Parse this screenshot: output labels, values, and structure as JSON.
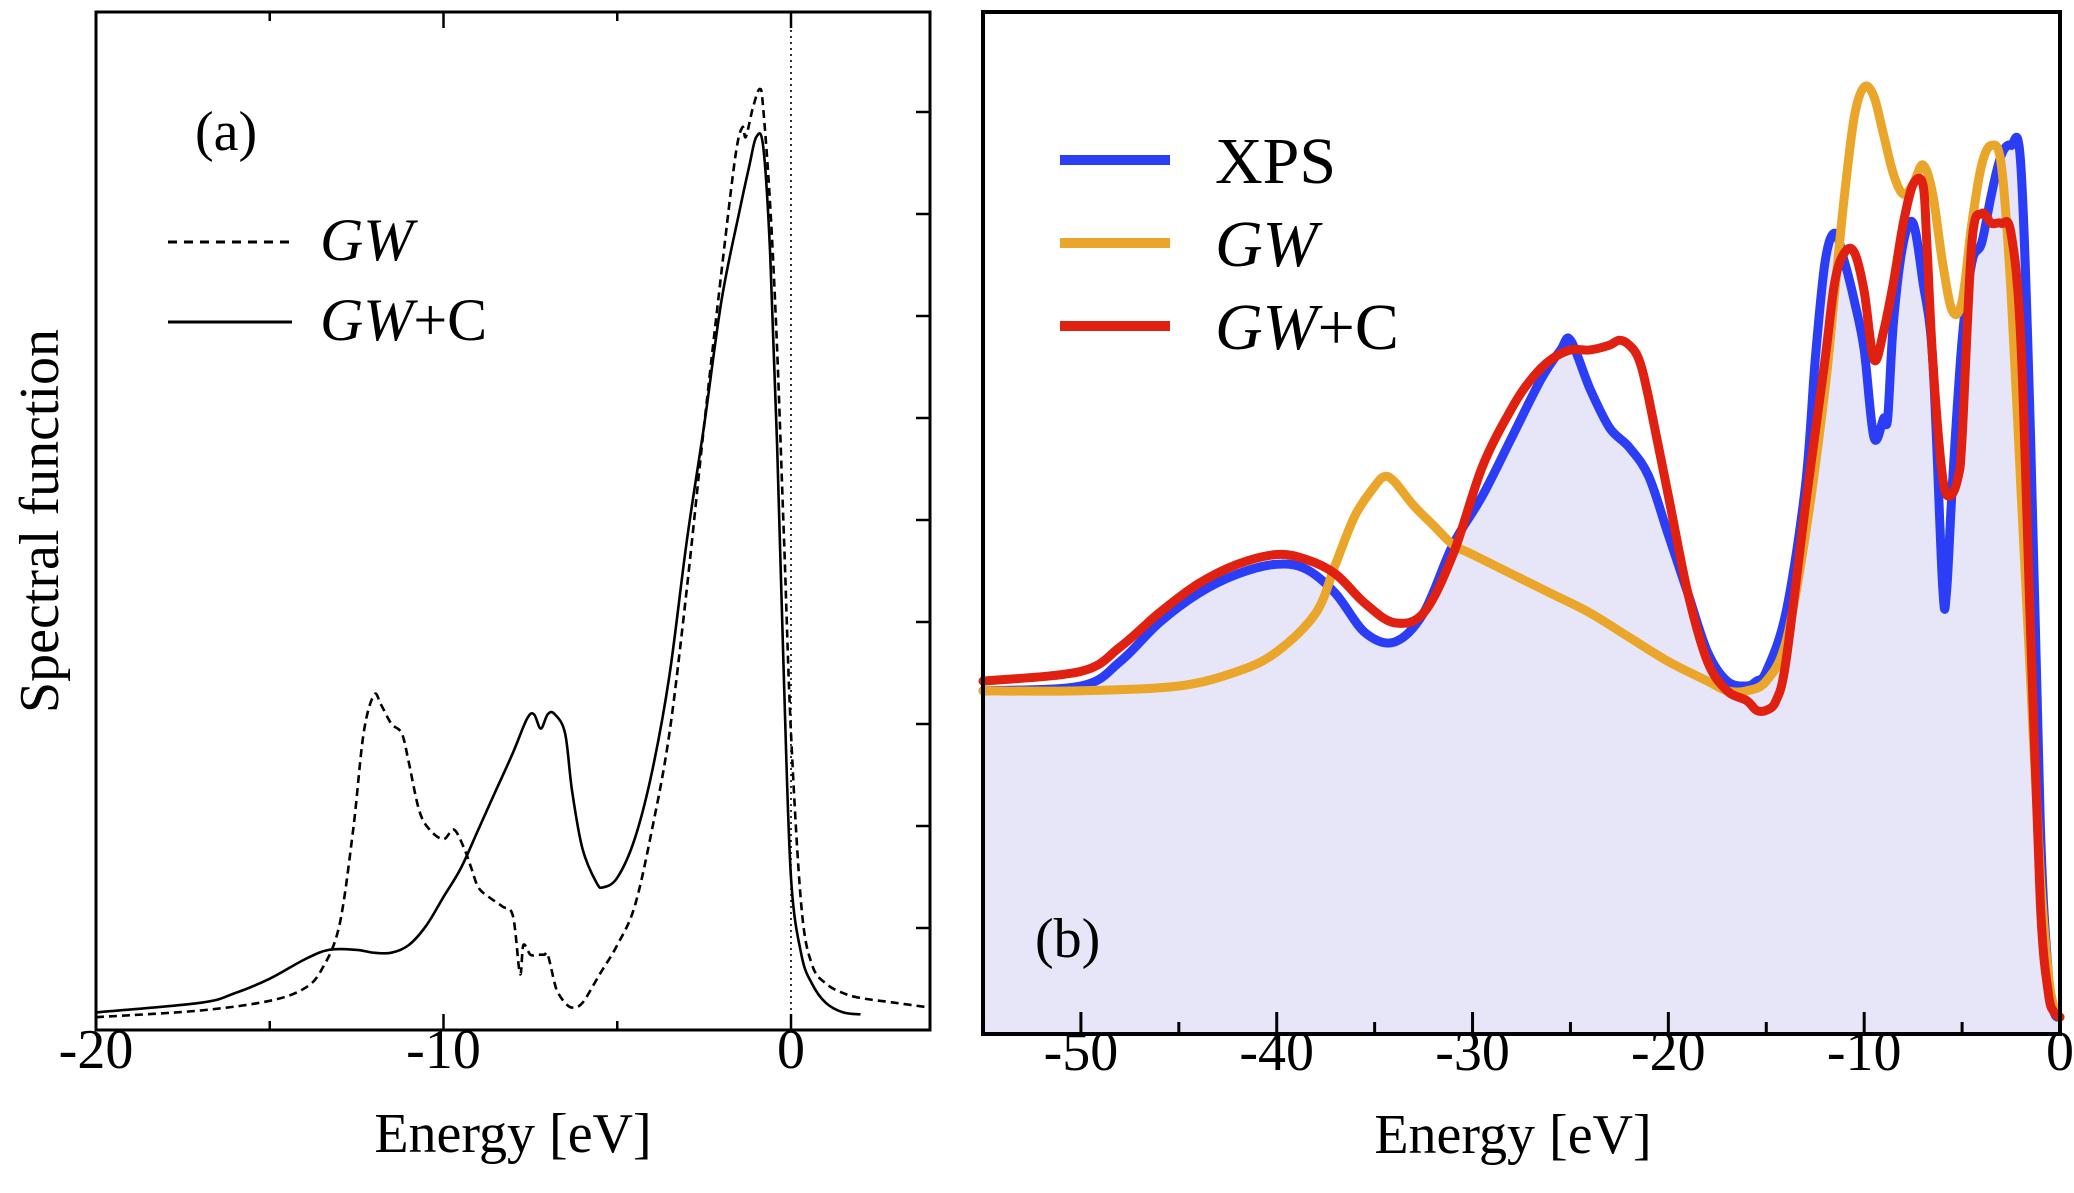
{
  "chart_data": [
    {
      "type": "line",
      "panel_label": "(a)",
      "xlabel": "Energy [eV]",
      "ylabel": "Spectral function",
      "xlim": [
        -20,
        4
      ],
      "ylim": [
        0,
        1
      ],
      "x_ticks": [
        -20,
        -10,
        0
      ],
      "x_tick_labels": [
        "-20",
        "-10",
        "0"
      ],
      "fermi_level": 0,
      "legend": [
        {
          "italic": "GW",
          "suffix": "",
          "style": "dashed",
          "color": "#000000"
        },
        {
          "italic": "GW",
          "suffix": "+C",
          "style": "solid",
          "color": "#000000"
        }
      ],
      "series": [
        {
          "name": "GW",
          "style": "dashed",
          "color": "#000000",
          "x": [
            -20,
            -17,
            -15,
            -14,
            -13.5,
            -13,
            -12.6,
            -12.3,
            -12,
            -11.8,
            -11.5,
            -11.2,
            -11,
            -10.7,
            -10.4,
            -10,
            -9.7,
            -9.4,
            -9.2,
            -9,
            -8.7,
            -8.3,
            -8,
            -7.8,
            -7.7,
            -7.5,
            -7.3,
            -7.1,
            -7,
            -6.8,
            -6.7,
            -6.5,
            -6.3,
            -6,
            -5.5,
            -5,
            -4.5,
            -4,
            -3.5,
            -3,
            -2.5,
            -2,
            -1.6,
            -1.4,
            -1.3,
            -1.1,
            -0.9,
            -0.8,
            -0.6,
            -0.4,
            -0.2,
            0,
            0.3,
            0.6,
            1,
            1.5,
            2,
            3,
            4
          ],
          "y": [
            0.005,
            0.012,
            0.022,
            0.035,
            0.055,
            0.1,
            0.2,
            0.3,
            0.34,
            0.33,
            0.31,
            0.3,
            0.27,
            0.22,
            0.2,
            0.19,
            0.2,
            0.18,
            0.16,
            0.14,
            0.13,
            0.12,
            0.11,
            0.05,
            0.08,
            0.07,
            0.07,
            0.07,
            0.07,
            0.04,
            0.03,
            0.02,
            0.015,
            0.02,
            0.05,
            0.08,
            0.12,
            0.2,
            0.3,
            0.45,
            0.62,
            0.78,
            0.9,
            0.93,
            0.92,
            0.95,
            0.97,
            0.95,
            0.85,
            0.7,
            0.5,
            0.3,
            0.12,
            0.06,
            0.04,
            0.03,
            0.025,
            0.02,
            0.015
          ]
        },
        {
          "name": "GW+C",
          "style": "solid",
          "color": "#000000",
          "x": [
            -20,
            -17,
            -16,
            -15,
            -14,
            -13.3,
            -12.5,
            -12,
            -11.5,
            -11,
            -10.5,
            -10,
            -9.5,
            -9,
            -8.5,
            -8,
            -7.6,
            -7.4,
            -7.2,
            -7,
            -6.8,
            -6.5,
            -6.3,
            -6,
            -5.6,
            -5.4,
            -5,
            -4.5,
            -4,
            -3.5,
            -3,
            -2.5,
            -2,
            -1.5,
            -1.2,
            -1,
            -0.8,
            -0.6,
            -0.4,
            -0.2,
            0,
            0.3,
            0.6,
            1,
            1.5,
            2
          ],
          "y": [
            0.01,
            0.02,
            0.03,
            0.045,
            0.065,
            0.075,
            0.075,
            0.072,
            0.072,
            0.08,
            0.1,
            0.13,
            0.16,
            0.2,
            0.24,
            0.28,
            0.315,
            0.32,
            0.305,
            0.32,
            0.32,
            0.3,
            0.24,
            0.18,
            0.145,
            0.14,
            0.15,
            0.19,
            0.26,
            0.36,
            0.5,
            0.62,
            0.75,
            0.84,
            0.89,
            0.92,
            0.91,
            0.8,
            0.6,
            0.35,
            0.15,
            0.07,
            0.04,
            0.02,
            0.01,
            0.008
          ]
        }
      ]
    },
    {
      "type": "line",
      "panel_label": "(b)",
      "xlabel": "Energy [eV]",
      "xlim": [
        -55,
        0
      ],
      "ylim": [
        0,
        1
      ],
      "x_ticks": [
        -50,
        -40,
        -30,
        -20,
        -10,
        0
      ],
      "x_tick_labels": [
        "-50",
        "-40",
        "-30",
        "-20",
        "-10",
        "0"
      ],
      "fill_color": "#e6e6f8",
      "legend": [
        {
          "italic": "",
          "suffix": "XPS",
          "color": "#2b3df5"
        },
        {
          "italic": "GW",
          "suffix": "",
          "color": "#eaa62a"
        },
        {
          "italic": "GW",
          "suffix": "+C",
          "color": "#e02010"
        }
      ],
      "series": [
        {
          "name": "XPS",
          "color": "#2b3df5",
          "filled": true,
          "x": [
            -55,
            -50,
            -48,
            -46,
            -44,
            -42,
            -40,
            -38.5,
            -37,
            -35.5,
            -34,
            -32.5,
            -31,
            -29.5,
            -28,
            -26.5,
            -25.5,
            -25,
            -24,
            -23,
            -22,
            -21,
            -20,
            -19,
            -18,
            -17,
            -16,
            -15.5,
            -15,
            -14,
            -13,
            -12.5,
            -12,
            -11.5,
            -11,
            -10.5,
            -10,
            -9.5,
            -9,
            -8.8,
            -8.5,
            -8,
            -7.5,
            -7,
            -6.5,
            -6,
            -5.8,
            -5.5,
            -5,
            -4.5,
            -4,
            -3.5,
            -3,
            -2.5,
            -2,
            -1.5,
            -1,
            -0.6,
            -0.3,
            0
          ],
          "y": [
            0.34,
            0.345,
            0.37,
            0.41,
            0.44,
            0.46,
            0.47,
            0.465,
            0.44,
            0.4,
            0.39,
            0.42,
            0.49,
            0.54,
            0.6,
            0.66,
            0.69,
            0.7,
            0.65,
            0.61,
            0.59,
            0.56,
            0.5,
            0.44,
            0.38,
            0.35,
            0.345,
            0.35,
            0.36,
            0.42,
            0.55,
            0.68,
            0.78,
            0.81,
            0.78,
            0.74,
            0.69,
            0.6,
            0.62,
            0.62,
            0.72,
            0.8,
            0.82,
            0.76,
            0.68,
            0.45,
            0.44,
            0.55,
            0.7,
            0.78,
            0.8,
            0.85,
            0.89,
            0.9,
            0.88,
            0.6,
            0.2,
            0.05,
            0.01,
            0.005
          ]
        },
        {
          "name": "GW",
          "color": "#eaa62a",
          "filled": false,
          "x": [
            -55,
            -50,
            -45,
            -42,
            -40,
            -38,
            -37,
            -36,
            -35,
            -34.5,
            -34,
            -33,
            -32,
            -31,
            -30,
            -28,
            -26,
            -24,
            -22,
            -20,
            -18,
            -17,
            -16,
            -15,
            -14,
            -13,
            -12,
            -11.5,
            -11,
            -10.5,
            -10,
            -9.5,
            -9,
            -8.5,
            -8,
            -7.5,
            -7,
            -6.5,
            -6,
            -5.5,
            -5,
            -4.5,
            -4,
            -3.5,
            -3,
            -2.5,
            -2,
            -1.5,
            -1,
            -0.6,
            -0.3,
            0
          ],
          "y": [
            0.34,
            0.34,
            0.345,
            0.36,
            0.38,
            0.42,
            0.47,
            0.52,
            0.55,
            0.56,
            0.555,
            0.53,
            0.51,
            0.49,
            0.48,
            0.46,
            0.44,
            0.42,
            0.395,
            0.37,
            0.35,
            0.34,
            0.34,
            0.35,
            0.39,
            0.5,
            0.65,
            0.75,
            0.85,
            0.93,
            0.96,
            0.95,
            0.91,
            0.87,
            0.85,
            0.86,
            0.88,
            0.85,
            0.78,
            0.73,
            0.74,
            0.82,
            0.88,
            0.9,
            0.88,
            0.75,
            0.55,
            0.35,
            0.15,
            0.05,
            0.015,
            0.005
          ]
        },
        {
          "name": "GW+C",
          "color": "#e02010",
          "filled": false,
          "x": [
            -55,
            -50,
            -48,
            -46,
            -44,
            -42,
            -40,
            -38.5,
            -37,
            -35.5,
            -34,
            -32.5,
            -31,
            -29.5,
            -28,
            -27,
            -26,
            -25,
            -24,
            -23,
            -22.5,
            -22,
            -21.5,
            -21,
            -20,
            -19,
            -18,
            -17,
            -16,
            -15.5,
            -15,
            -14.5,
            -14,
            -13,
            -12,
            -11.5,
            -11,
            -10.5,
            -10,
            -9.5,
            -9,
            -8.5,
            -8,
            -7.5,
            -7,
            -6.8,
            -6.5,
            -6,
            -5.6,
            -5.2,
            -5,
            -4.5,
            -4,
            -3.5,
            -3,
            -2.5,
            -2,
            -1.5,
            -1,
            -0.6,
            -0.3,
            0
          ],
          "y": [
            0.35,
            0.36,
            0.385,
            0.42,
            0.45,
            0.47,
            0.48,
            0.475,
            0.46,
            0.43,
            0.41,
            0.42,
            0.48,
            0.57,
            0.63,
            0.66,
            0.68,
            0.69,
            0.69,
            0.695,
            0.7,
            0.695,
            0.68,
            0.64,
            0.54,
            0.44,
            0.37,
            0.34,
            0.33,
            0.32,
            0.32,
            0.33,
            0.37,
            0.53,
            0.68,
            0.76,
            0.79,
            0.79,
            0.75,
            0.68,
            0.71,
            0.76,
            0.82,
            0.86,
            0.86,
            0.8,
            0.68,
            0.56,
            0.54,
            0.56,
            0.6,
            0.8,
            0.83,
            0.82,
            0.82,
            0.81,
            0.7,
            0.4,
            0.12,
            0.03,
            0.01,
            0.005
          ]
        }
      ]
    }
  ]
}
